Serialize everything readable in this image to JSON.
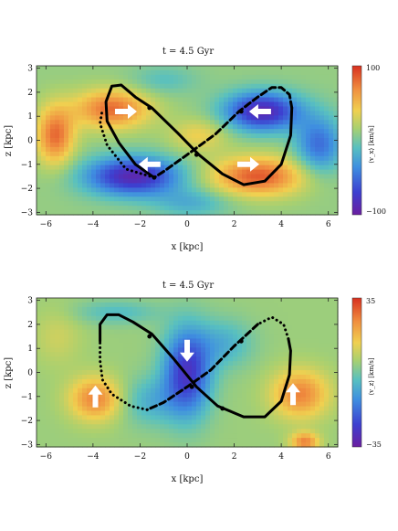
{
  "chart_data": [
    {
      "type": "heatmap",
      "title": "t = 4.5 Gyr",
      "xlabel": "x [kpc]",
      "ylabel": "z [kpc]",
      "xlim": [
        -6.4,
        6.4
      ],
      "ylim": [
        -3.1,
        3.1
      ],
      "xticks": [
        -6,
        -4,
        -2,
        0,
        2,
        4,
        6
      ],
      "yticks": [
        -3,
        -2,
        -1,
        0,
        1,
        2,
        3
      ],
      "colorbar": {
        "label": "⟨v_x⟩ [km/s]",
        "min": -100,
        "max": 100,
        "ticks": [
          "100",
          "−100"
        ]
      },
      "field": {
        "base": 0.55,
        "blobs": [
          {
            "x": -3.2,
            "z": 1.3,
            "sx": 1.6,
            "sz": 0.8,
            "v": 0.35
          },
          {
            "x": -5.6,
            "z": 0.2,
            "sx": 0.8,
            "sz": 1.2,
            "v": 0.35
          },
          {
            "x": 3.0,
            "z": -1.5,
            "sx": 2.0,
            "sz": 0.8,
            "v": 0.38
          },
          {
            "x": 0.5,
            "z": 0.2,
            "sx": 1.2,
            "sz": 0.7,
            "v": 0.15
          },
          {
            "x": 3.2,
            "z": 1.2,
            "sx": 1.6,
            "sz": 0.8,
            "v": -0.5
          },
          {
            "x": 5.6,
            "z": -0.2,
            "sx": 1.0,
            "sz": 1.2,
            "v": -0.3
          },
          {
            "x": -2.3,
            "z": -1.5,
            "sx": 2.0,
            "sz": 0.8,
            "v": -0.5
          },
          {
            "x": 0.2,
            "z": -2.6,
            "sx": 1.6,
            "sz": 0.6,
            "v": -0.15
          },
          {
            "x": -1.0,
            "z": 2.5,
            "sx": 1.4,
            "sz": 0.6,
            "v": -0.1
          }
        ]
      },
      "orbit": {
        "solid": [
          [
            -1.4,
            -1.55
          ],
          [
            -2.2,
            -1.0
          ],
          [
            -2.9,
            -0.1
          ],
          [
            -3.4,
            0.8
          ],
          [
            -3.45,
            1.6
          ],
          [
            -3.2,
            2.25
          ],
          [
            -2.8,
            2.3
          ],
          [
            -2.2,
            1.8
          ],
          [
            -1.5,
            1.35
          ],
          [
            -0.4,
            0.3
          ],
          [
            0.5,
            -0.6
          ],
          [
            1.5,
            -1.4
          ],
          [
            2.4,
            -1.85
          ],
          [
            3.3,
            -1.7
          ],
          [
            4.0,
            -1.0
          ],
          [
            4.4,
            0.2
          ],
          [
            4.45,
            1.35
          ]
        ],
        "dashed": [
          [
            4.45,
            1.35
          ],
          [
            4.35,
            1.9
          ],
          [
            4.0,
            2.2
          ],
          [
            3.6,
            2.2
          ],
          [
            3.0,
            1.8
          ],
          [
            2.2,
            1.2
          ],
          [
            1.2,
            0.25
          ],
          [
            0.0,
            -0.6
          ],
          [
            -1.0,
            -1.3
          ],
          [
            -1.4,
            -1.55
          ]
        ],
        "dotted": [
          [
            -1.4,
            -1.55
          ],
          [
            -2.6,
            -1.2
          ],
          [
            -3.4,
            -0.2
          ],
          [
            -3.7,
            0.7
          ],
          [
            -3.6,
            1.3
          ]
        ],
        "markers": [
          [
            -1.4,
            -1.55
          ],
          [
            -1.6,
            1.35
          ],
          [
            0.4,
            -0.6
          ],
          [
            2.3,
            1.2
          ]
        ]
      },
      "arrows": [
        {
          "x": -2.6,
          "z": 1.2,
          "dir": "right"
        },
        {
          "x": 3.1,
          "z": 1.2,
          "dir": "left"
        },
        {
          "x": -1.6,
          "z": -1.0,
          "dir": "left"
        },
        {
          "x": 2.6,
          "z": -1.0,
          "dir": "right"
        }
      ]
    },
    {
      "type": "heatmap",
      "title": "t = 4.5 Gyr",
      "xlabel": "x [kpc]",
      "ylabel": "z [kpc]",
      "xlim": [
        -6.4,
        6.4
      ],
      "ylim": [
        -3.1,
        3.1
      ],
      "xticks": [
        -6,
        -4,
        -2,
        0,
        2,
        4,
        6
      ],
      "yticks": [
        -3,
        -2,
        -1,
        0,
        1,
        2,
        3
      ],
      "colorbar": {
        "label": "⟨v_z⟩ [km/s]",
        "min": -35,
        "max": 35,
        "ticks": [
          "35",
          "−35"
        ]
      },
      "field": {
        "base": 0.56,
        "blobs": [
          {
            "x": 0.0,
            "z": 0.0,
            "sx": 1.0,
            "sz": 1.8,
            "v": -0.45
          },
          {
            "x": 1.6,
            "z": 1.2,
            "sx": 1.2,
            "sz": 1.0,
            "v": -0.15
          },
          {
            "x": -1.6,
            "z": -1.2,
            "sx": 1.2,
            "sz": 1.0,
            "v": -0.15
          },
          {
            "x": -3.9,
            "z": -1.1,
            "sx": 1.1,
            "sz": 0.9,
            "v": 0.3
          },
          {
            "x": 4.8,
            "z": -0.9,
            "sx": 1.2,
            "sz": 1.0,
            "v": 0.3
          },
          {
            "x": -3.0,
            "z": 2.5,
            "sx": 1.8,
            "sz": 0.5,
            "v": -0.12
          },
          {
            "x": 5.0,
            "z": -2.9,
            "sx": 0.6,
            "sz": 0.4,
            "v": 0.3
          },
          {
            "x": -5.5,
            "z": 1.5,
            "sx": 1.0,
            "sz": 1.2,
            "v": 0.08
          }
        ]
      },
      "orbit": {
        "solid": [
          [
            -3.7,
            1.3
          ],
          [
            -3.7,
            2.0
          ],
          [
            -3.4,
            2.4
          ],
          [
            -2.9,
            2.4
          ],
          [
            -2.3,
            2.1
          ],
          [
            -1.5,
            1.6
          ],
          [
            -0.6,
            0.6
          ],
          [
            0.4,
            -0.6
          ],
          [
            1.3,
            -1.4
          ],
          [
            2.4,
            -1.85
          ],
          [
            3.3,
            -1.85
          ],
          [
            4.0,
            -1.2
          ],
          [
            4.35,
            -0.1
          ],
          [
            4.4,
            0.9
          ],
          [
            4.3,
            1.4
          ]
        ],
        "dotted": [
          [
            4.3,
            1.4
          ],
          [
            4.1,
            2.0
          ],
          [
            3.6,
            2.3
          ],
          [
            3.0,
            2.0
          ]
        ],
        "dashed": [
          [
            3.0,
            2.0
          ],
          [
            2.0,
            1.1
          ],
          [
            1.0,
            0.1
          ],
          [
            0.0,
            -0.6
          ],
          [
            -1.0,
            -1.25
          ],
          [
            -1.7,
            -1.55
          ]
        ],
        "dotted2": [
          [
            -1.7,
            -1.55
          ],
          [
            -2.4,
            -1.4
          ],
          [
            -3.2,
            -0.9
          ],
          [
            -3.6,
            -0.3
          ],
          [
            -3.7,
            0.5
          ],
          [
            -3.7,
            1.3
          ]
        ],
        "markers": [
          [
            -1.6,
            1.5
          ],
          [
            0.2,
            -0.6
          ],
          [
            1.5,
            -1.5
          ],
          [
            2.3,
            1.3
          ]
        ]
      },
      "arrows": [
        {
          "x": -3.9,
          "z": -1.0,
          "dir": "up"
        },
        {
          "x": 4.5,
          "z": -0.9,
          "dir": "up"
        },
        {
          "x": 0.0,
          "z": 0.9,
          "dir": "down"
        }
      ]
    }
  ]
}
